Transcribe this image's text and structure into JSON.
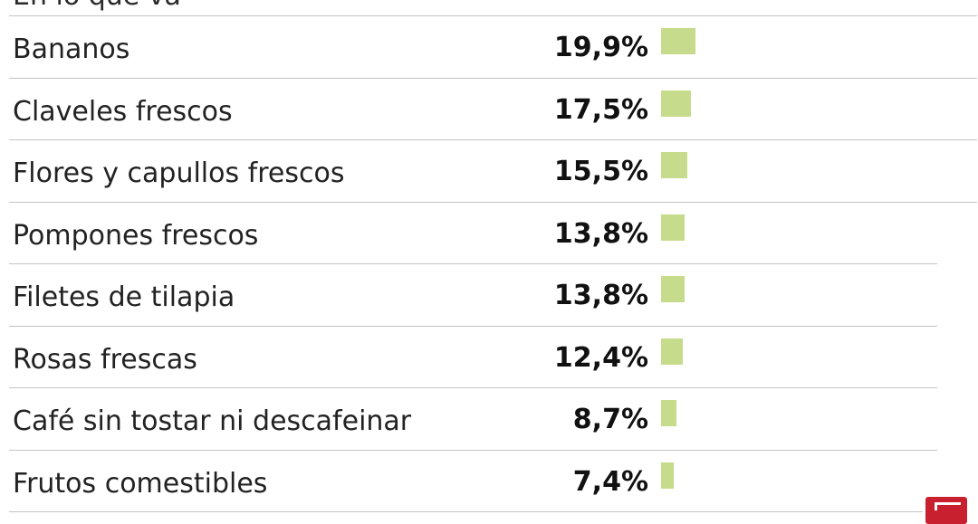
{
  "header": {
    "cut_text": "En lo que va"
  },
  "chart_data": {
    "type": "bar",
    "orientation": "horizontal",
    "categories": [
      "Bananos",
      "Claveles frescos",
      "Flores y capullos frescos",
      "Pompones frescos",
      "Filetes de tilapia",
      "Rosas frescas",
      "Café sin tostar ni descafeinar",
      "Frutos comestibles"
    ],
    "values": [
      19.9,
      17.5,
      15.5,
      13.8,
      13.8,
      12.4,
      8.7,
      7.4
    ],
    "value_labels": [
      "19,9%",
      "17,5%",
      "15,5%",
      "13,8%",
      "13,8%",
      "12,4%",
      "8,7%",
      "7,4%"
    ],
    "unit": "%",
    "bar_color": "#c6db8c",
    "xlim": [
      0,
      20
    ]
  },
  "logo": {
    "name": "lr-logo-icon",
    "color": "#c8202e"
  }
}
